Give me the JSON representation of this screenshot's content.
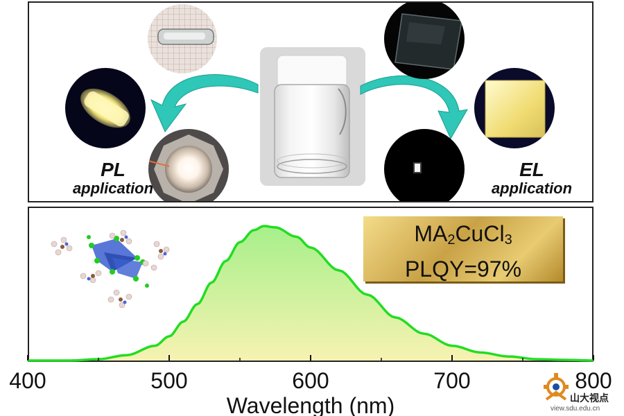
{
  "labels": {
    "pl_title": "PL",
    "pl_sub": "application",
    "el_title": "EL",
    "el_sub": "application"
  },
  "badge": {
    "formula_main": "MA",
    "formula_sub1": "2",
    "formula_mid": "CuCl",
    "formula_sub2": "3",
    "plqy": "PLQY=97%"
  },
  "watermark": {
    "text": "山大视点",
    "url": "view.sdu.edu.cn"
  },
  "colors": {
    "spectrum_line": "#22dd22",
    "fill_top": "#a6f08a",
    "fill_bottom": "#f7f2b2",
    "arrow": "#2fc7b7",
    "octahedron": "#3b5fd0"
  },
  "chart_data": {
    "type": "line",
    "title": "",
    "xlabel": "Wavelength (nm)",
    "ylabel": "",
    "xlim": [
      400,
      800
    ],
    "ylim": [
      0,
      1
    ],
    "xticks": [
      400,
      500,
      600,
      700,
      800
    ],
    "series": [
      {
        "values": [
          [
            400,
            0.0
          ],
          [
            430,
            0.0
          ],
          [
            450,
            0.01
          ],
          [
            470,
            0.04
          ],
          [
            490,
            0.11
          ],
          [
            500,
            0.18
          ],
          [
            510,
            0.29
          ],
          [
            520,
            0.42
          ],
          [
            530,
            0.58
          ],
          [
            540,
            0.74
          ],
          [
            550,
            0.88
          ],
          [
            560,
            0.97
          ],
          [
            567,
            1.0
          ],
          [
            575,
            0.99
          ],
          [
            590,
            0.92
          ],
          [
            600,
            0.84
          ],
          [
            620,
            0.67
          ],
          [
            640,
            0.49
          ],
          [
            660,
            0.32
          ],
          [
            680,
            0.2
          ],
          [
            700,
            0.11
          ],
          [
            720,
            0.06
          ],
          [
            740,
            0.03
          ],
          [
            760,
            0.01
          ],
          [
            780,
            0.005
          ],
          [
            800,
            0.0
          ]
        ]
      }
    ]
  }
}
